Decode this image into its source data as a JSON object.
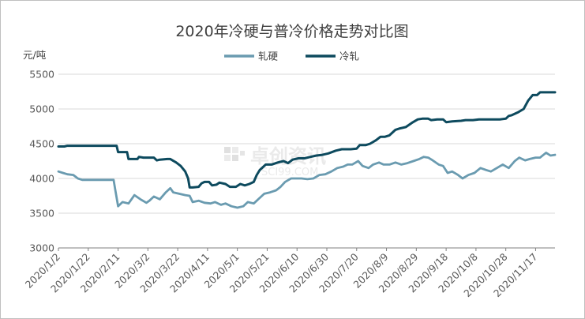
{
  "chart_data": {
    "type": "line",
    "title": "2020年冷硬与普冷价格走势对比图",
    "ylabel": "元/吨",
    "xlabel": "",
    "ylim": [
      3000,
      5500
    ],
    "yticks": [
      3000,
      3500,
      4000,
      4500,
      5000,
      5500
    ],
    "x_labels": [
      "2020/1/2",
      "2020/1/22",
      "2020/2/11",
      "2020/3/2",
      "2020/3/22",
      "2020/4/11",
      "2020/5/1",
      "2020/5/21",
      "2020/6/10",
      "2020/6/30",
      "2020/7/20",
      "2020/8/9",
      "2020/8/29",
      "2020/9/18",
      "2020/10/8",
      "2020/10/28",
      "2020/11/17"
    ],
    "x_range": [
      "2020-01-02",
      "2020-11-30"
    ],
    "grid": "horizontal",
    "legend": "top-center",
    "series": [
      {
        "name": "轧硬",
        "color": "#6a9bb0",
        "points": [
          [
            "2020-01-02",
            4100
          ],
          [
            "2020-01-05",
            4080
          ],
          [
            "2020-01-08",
            4060
          ],
          [
            "2020-01-12",
            4050
          ],
          [
            "2020-01-15",
            4000
          ],
          [
            "2020-01-18",
            3980
          ],
          [
            "2020-02-01",
            3980
          ],
          [
            "2020-02-08",
            3980
          ],
          [
            "2020-02-09",
            3850
          ],
          [
            "2020-02-11",
            3600
          ],
          [
            "2020-02-14",
            3660
          ],
          [
            "2020-02-18",
            3640
          ],
          [
            "2020-02-22",
            3760
          ],
          [
            "2020-02-26",
            3700
          ],
          [
            "2020-03-01",
            3650
          ],
          [
            "2020-03-03",
            3680
          ],
          [
            "2020-03-06",
            3740
          ],
          [
            "2020-03-10",
            3700
          ],
          [
            "2020-03-14",
            3800
          ],
          [
            "2020-03-17",
            3860
          ],
          [
            "2020-03-19",
            3800
          ],
          [
            "2020-03-23",
            3780
          ],
          [
            "2020-03-27",
            3760
          ],
          [
            "2020-03-30",
            3750
          ],
          [
            "2020-04-01",
            3660
          ],
          [
            "2020-04-05",
            3680
          ],
          [
            "2020-04-09",
            3650
          ],
          [
            "2020-04-13",
            3640
          ],
          [
            "2020-04-16",
            3660
          ],
          [
            "2020-04-20",
            3620
          ],
          [
            "2020-04-23",
            3640
          ],
          [
            "2020-04-27",
            3600
          ],
          [
            "2020-05-01",
            3580
          ],
          [
            "2020-05-05",
            3600
          ],
          [
            "2020-05-08",
            3660
          ],
          [
            "2020-05-12",
            3640
          ],
          [
            "2020-05-15",
            3700
          ],
          [
            "2020-05-19",
            3780
          ],
          [
            "2020-05-23",
            3800
          ],
          [
            "2020-05-27",
            3830
          ],
          [
            "2020-05-30",
            3880
          ],
          [
            "2020-06-02",
            3950
          ],
          [
            "2020-06-06",
            4000
          ],
          [
            "2020-06-13",
            4000
          ],
          [
            "2020-06-17",
            3990
          ],
          [
            "2020-06-21",
            4000
          ],
          [
            "2020-06-25",
            4050
          ],
          [
            "2020-06-29",
            4060
          ],
          [
            "2020-07-03",
            4100
          ],
          [
            "2020-07-07",
            4150
          ],
          [
            "2020-07-11",
            4170
          ],
          [
            "2020-07-14",
            4200
          ],
          [
            "2020-07-17",
            4200
          ],
          [
            "2020-07-21",
            4250
          ],
          [
            "2020-07-24",
            4180
          ],
          [
            "2020-07-28",
            4150
          ],
          [
            "2020-07-31",
            4200
          ],
          [
            "2020-08-04",
            4230
          ],
          [
            "2020-08-07",
            4200
          ],
          [
            "2020-08-11",
            4200
          ],
          [
            "2020-08-15",
            4230
          ],
          [
            "2020-08-19",
            4200
          ],
          [
            "2020-08-23",
            4220
          ],
          [
            "2020-08-27",
            4250
          ],
          [
            "2020-08-31",
            4280
          ],
          [
            "2020-09-03",
            4310
          ],
          [
            "2020-09-06",
            4300
          ],
          [
            "2020-09-09",
            4260
          ],
          [
            "2020-09-13",
            4200
          ],
          [
            "2020-09-16",
            4180
          ],
          [
            "2020-09-19",
            4080
          ],
          [
            "2020-09-22",
            4100
          ],
          [
            "2020-09-26",
            4050
          ],
          [
            "2020-09-29",
            4000
          ],
          [
            "2020-10-03",
            4050
          ],
          [
            "2020-10-07",
            4080
          ],
          [
            "2020-10-11",
            4150
          ],
          [
            "2020-10-15",
            4120
          ],
          [
            "2020-10-18",
            4100
          ],
          [
            "2020-10-22",
            4150
          ],
          [
            "2020-10-26",
            4200
          ],
          [
            "2020-10-30",
            4150
          ],
          [
            "2020-11-03",
            4250
          ],
          [
            "2020-11-06",
            4300
          ],
          [
            "2020-11-10",
            4260
          ],
          [
            "2020-11-13",
            4280
          ],
          [
            "2020-11-17",
            4300
          ],
          [
            "2020-11-20",
            4300
          ],
          [
            "2020-11-24",
            4370
          ],
          [
            "2020-11-27",
            4330
          ],
          [
            "2020-11-30",
            4340
          ]
        ]
      },
      {
        "name": "冷轧",
        "color": "#0d4a5e",
        "points": [
          [
            "2020-01-02",
            4460
          ],
          [
            "2020-01-06",
            4460
          ],
          [
            "2020-01-08",
            4470
          ],
          [
            "2020-01-13",
            4470
          ],
          [
            "2020-01-22",
            4470
          ],
          [
            "2020-02-01",
            4470
          ],
          [
            "2020-02-08",
            4470
          ],
          [
            "2020-02-10",
            4470
          ],
          [
            "2020-02-11",
            4380
          ],
          [
            "2020-02-14",
            4380
          ],
          [
            "2020-02-17",
            4380
          ],
          [
            "2020-02-18",
            4280
          ],
          [
            "2020-02-20",
            4280
          ],
          [
            "2020-02-24",
            4280
          ],
          [
            "2020-02-25",
            4310
          ],
          [
            "2020-02-28",
            4300
          ],
          [
            "2020-03-03",
            4300
          ],
          [
            "2020-03-06",
            4300
          ],
          [
            "2020-03-08",
            4260
          ],
          [
            "2020-03-10",
            4270
          ],
          [
            "2020-03-15",
            4280
          ],
          [
            "2020-03-17",
            4280
          ],
          [
            "2020-03-21",
            4230
          ],
          [
            "2020-03-24",
            4180
          ],
          [
            "2020-03-27",
            4100
          ],
          [
            "2020-03-29",
            4000
          ],
          [
            "2020-03-30",
            3870
          ],
          [
            "2020-04-01",
            3870
          ],
          [
            "2020-04-05",
            3880
          ],
          [
            "2020-04-07",
            3930
          ],
          [
            "2020-04-09",
            3950
          ],
          [
            "2020-04-12",
            3950
          ],
          [
            "2020-04-14",
            3900
          ],
          [
            "2020-04-17",
            3910
          ],
          [
            "2020-04-19",
            3940
          ],
          [
            "2020-04-23",
            3920
          ],
          [
            "2020-04-26",
            3880
          ],
          [
            "2020-04-30",
            3880
          ],
          [
            "2020-05-03",
            3920
          ],
          [
            "2020-05-06",
            3900
          ],
          [
            "2020-05-09",
            3920
          ],
          [
            "2020-05-12",
            3950
          ],
          [
            "2020-05-14",
            4050
          ],
          [
            "2020-05-16",
            4120
          ],
          [
            "2020-05-20",
            4200
          ],
          [
            "2020-05-24",
            4200
          ],
          [
            "2020-05-28",
            4230
          ],
          [
            "2020-06-01",
            4250
          ],
          [
            "2020-06-04",
            4220
          ],
          [
            "2020-06-07",
            4270
          ],
          [
            "2020-06-11",
            4290
          ],
          [
            "2020-06-15",
            4290
          ],
          [
            "2020-06-19",
            4310
          ],
          [
            "2020-06-23",
            4330
          ],
          [
            "2020-06-27",
            4340
          ],
          [
            "2020-07-01",
            4360
          ],
          [
            "2020-07-06",
            4400
          ],
          [
            "2020-07-10",
            4420
          ],
          [
            "2020-07-16",
            4420
          ],
          [
            "2020-07-20",
            4430
          ],
          [
            "2020-07-22",
            4480
          ],
          [
            "2020-07-26",
            4480
          ],
          [
            "2020-07-29",
            4500
          ],
          [
            "2020-08-02",
            4550
          ],
          [
            "2020-08-05",
            4600
          ],
          [
            "2020-08-08",
            4600
          ],
          [
            "2020-08-11",
            4620
          ],
          [
            "2020-08-15",
            4700
          ],
          [
            "2020-08-18",
            4720
          ],
          [
            "2020-08-22",
            4740
          ],
          [
            "2020-08-26",
            4800
          ],
          [
            "2020-08-30",
            4850
          ],
          [
            "2020-09-02",
            4860
          ],
          [
            "2020-09-06",
            4860
          ],
          [
            "2020-09-08",
            4840
          ],
          [
            "2020-09-12",
            4850
          ],
          [
            "2020-09-16",
            4850
          ],
          [
            "2020-09-18",
            4810
          ],
          [
            "2020-09-22",
            4820
          ],
          [
            "2020-09-28",
            4830
          ],
          [
            "2020-10-01",
            4840
          ],
          [
            "2020-10-06",
            4840
          ],
          [
            "2020-10-10",
            4850
          ],
          [
            "2020-10-14",
            4850
          ],
          [
            "2020-10-19",
            4850
          ],
          [
            "2020-10-24",
            4850
          ],
          [
            "2020-10-28",
            4860
          ],
          [
            "2020-10-30",
            4900
          ],
          [
            "2020-11-01",
            4910
          ],
          [
            "2020-11-05",
            4950
          ],
          [
            "2020-11-09",
            5000
          ],
          [
            "2020-11-12",
            5120
          ],
          [
            "2020-11-15",
            5200
          ],
          [
            "2020-11-18",
            5200
          ],
          [
            "2020-11-20",
            5240
          ],
          [
            "2020-11-25",
            5240
          ],
          [
            "2020-11-30",
            5240
          ]
        ]
      }
    ]
  },
  "watermark": {
    "logo_text": "卓创资讯",
    "site_text": "SCI99.COM"
  }
}
